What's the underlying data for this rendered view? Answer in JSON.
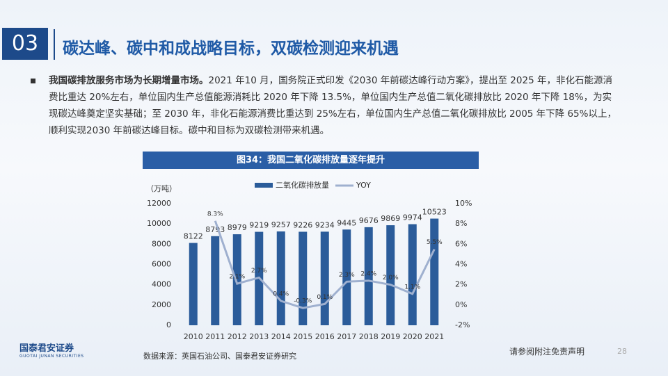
{
  "header": {
    "number": "03",
    "title": "碳达峰、碳中和成战略目标，双碳检测迎来机遇"
  },
  "paragraph": {
    "lead": "我国碳排放服务市场为长期增量市场。",
    "body": "2021 年10 月，国务院正式印发《2030 年前碳达峰行动方案》，提出至 2025 年，非化石能源消费比重达 20%左右，单位国内生产总值能源消耗比 2020 年下降 13.5%，单位国内生产总值二氧化碳排放比 2020 年下降 18%，为实现碳达峰奠定坚实基础；至 2030 年，非化石能源消费比重达到 25%左右，单位国内生产总值二氧化碳排放比 2005 年下降 65%以上，顺利实现2030 年前碳达峰目标。碳中和目标为双碳检测带来机遇。"
  },
  "chart_data": {
    "type": "bar-line",
    "title": "图34：我国二氧化碳排放量逐年提升",
    "y_label": "（万吨）",
    "source": "数据来源：英国石油公司、国泰君安证券研究",
    "categories": [
      "2010",
      "2011",
      "2012",
      "2013",
      "2014",
      "2015",
      "2016",
      "2017",
      "2018",
      "2019",
      "2020",
      "2021"
    ],
    "series": [
      {
        "name": "二氧化碳排放量",
        "type": "bar",
        "color": "#2b5c9a",
        "values": [
          8122,
          8793,
          8979,
          9219,
          9257,
          9226,
          9234,
          9445,
          9676,
          9869,
          9974,
          10523
        ]
      },
      {
        "name": "YOY",
        "type": "line",
        "axis": "y2",
        "color": "#9fb0cf",
        "values": [
          null,
          8.3,
          2.1,
          2.7,
          0.4,
          -0.3,
          0.1,
          2.3,
          2.4,
          2.0,
          1.1,
          5.5
        ],
        "value_labels": [
          null,
          "8.3%",
          "2.1%",
          "2.7%",
          "0.4%",
          "-0.3%",
          "0.1%",
          "2.3%",
          "2.4%",
          "2.0%",
          "1.1%",
          "5.5%"
        ]
      }
    ],
    "ylim": [
      0,
      12000
    ],
    "yticks": [
      0,
      2000,
      4000,
      6000,
      8000,
      10000,
      12000
    ],
    "y2lim": [
      -2,
      10
    ],
    "y2ticks": [
      {
        "value": -2,
        "label": "-2%"
      },
      {
        "value": 0,
        "label": "0%"
      },
      {
        "value": 2,
        "label": "2%"
      },
      {
        "value": 4,
        "label": "4%"
      },
      {
        "value": 6,
        "label": "6%"
      },
      {
        "value": 8,
        "label": "8%"
      },
      {
        "value": 10,
        "label": "10%"
      }
    ],
    "legend": "top"
  },
  "footer": {
    "logo": "国泰君安证券",
    "logo_en": "GUOTAI JUNAN SECURITIES",
    "disclaimer": "请参阅附注免责声明",
    "page": "28"
  }
}
